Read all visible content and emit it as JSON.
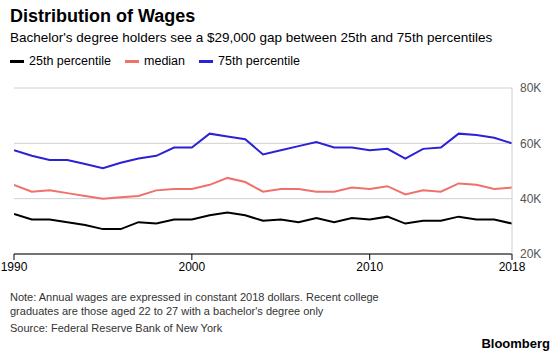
{
  "chart_data": {
    "type": "line",
    "title": "Distribution of Wages",
    "subtitle": "Bachelor's degree holders see a $29,000 gap between 25th and 75th percentiles",
    "note": "Note: Annual wages are expressed in constant 2018 dollars. Recent college graduates are those aged 22 to 27 with a bachelor's degree only",
    "source": "Source: Federal Reserve Bank of New York",
    "brand": "Bloomberg",
    "x": [
      1990,
      1991,
      1992,
      1993,
      1994,
      1995,
      1996,
      1997,
      1998,
      1999,
      2000,
      2001,
      2002,
      2003,
      2004,
      2005,
      2006,
      2007,
      2008,
      2009,
      2010,
      2011,
      2012,
      2013,
      2014,
      2015,
      2016,
      2017,
      2018
    ],
    "series": [
      {
        "name": "25th percentile",
        "color": "#000000",
        "values": [
          34500,
          32500,
          32500,
          31500,
          30500,
          29000,
          29000,
          31500,
          31000,
          32500,
          32500,
          34000,
          35000,
          34000,
          32000,
          32500,
          31500,
          33000,
          31500,
          33000,
          32500,
          33500,
          31000,
          32000,
          32000,
          33500,
          32500,
          32500,
          31000
        ]
      },
      {
        "name": "median",
        "color": "#f0706a",
        "values": [
          45000,
          42500,
          43000,
          42000,
          41000,
          40000,
          40500,
          41000,
          43000,
          43500,
          43500,
          45000,
          47500,
          46000,
          42500,
          43500,
          43500,
          42500,
          42500,
          44000,
          43500,
          44500,
          41500,
          43000,
          42500,
          45500,
          45000,
          43500,
          44000
        ]
      },
      {
        "name": "75th percentile",
        "color": "#2b22d6",
        "values": [
          57500,
          55500,
          54000,
          54000,
          52500,
          51000,
          53000,
          54500,
          55500,
          58500,
          58500,
          63500,
          62500,
          61500,
          56000,
          57500,
          59000,
          60500,
          58500,
          58500,
          57500,
          58000,
          54500,
          58000,
          58500,
          63500,
          63000,
          62000,
          60000
        ]
      }
    ],
    "xlim": [
      1990,
      2018
    ],
    "xticks": [
      1990,
      2000,
      2010,
      2018
    ],
    "ylim": [
      20000,
      80000
    ],
    "yticks": [
      {
        "value": 20000,
        "label": "20K"
      },
      {
        "value": 40000,
        "label": "40K"
      },
      {
        "value": 60000,
        "label": "60K"
      },
      {
        "value": 80000,
        "label": "80K"
      }
    ],
    "grid": true,
    "legend": "top left"
  }
}
